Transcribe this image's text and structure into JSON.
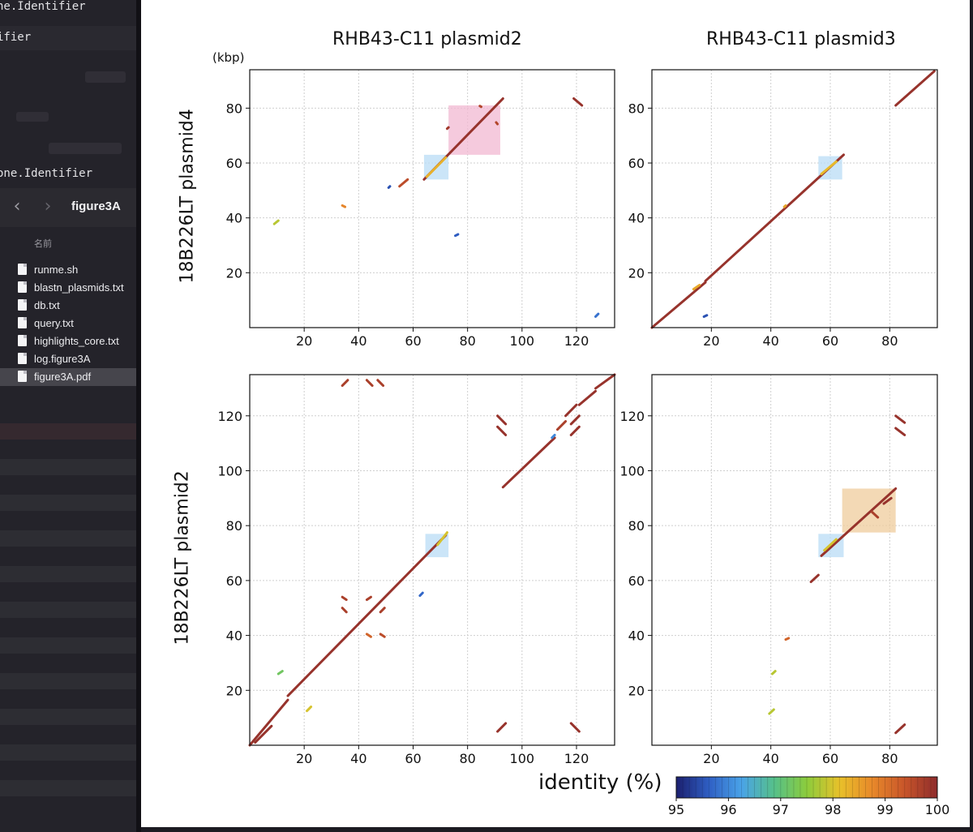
{
  "finder": {
    "code_lines": [
      "ne.Identifier",
      "ifier",
      "one.Identifier"
    ],
    "folder_title": "figure3A",
    "column_header": "名前",
    "back_glyph": "‹",
    "forward_glyph": "›",
    "files": [
      {
        "name": "runme.sh",
        "icon": "document-icon",
        "selected": false
      },
      {
        "name": "blastn_plasmids.txt",
        "icon": "document-icon",
        "selected": false
      },
      {
        "name": "db.txt",
        "icon": "document-icon",
        "selected": false
      },
      {
        "name": "query.txt",
        "icon": "document-icon",
        "selected": false
      },
      {
        "name": "highlights_core.txt",
        "icon": "document-icon",
        "selected": false
      },
      {
        "name": "log.figure3A",
        "icon": "document-icon",
        "selected": false
      },
      {
        "name": "figure3A.pdf",
        "icon": "pdf-document-icon",
        "selected": true
      }
    ]
  },
  "figure": {
    "column_titles": [
      "RHB43-C11 plasmid2",
      "RHB43-C11 plasmid3"
    ],
    "row_titles": [
      "18B226LT plasmid4",
      "18B226LT plasmid2"
    ],
    "unit_label": "(kbp)",
    "colorbar": {
      "title": "identity (%)",
      "ticks": [
        "95",
        "96",
        "97",
        "98",
        "99",
        "100"
      ],
      "range": [
        95,
        100
      ],
      "colors": [
        "#1b1f6e",
        "#2f5fc4",
        "#4aa3e8",
        "#56c08a",
        "#8ccc3c",
        "#e8c12a",
        "#e8892a",
        "#c8552a",
        "#8e2c2c"
      ]
    },
    "colors": {
      "highlight_pink": "#f2b8d2",
      "highlight_blue": "#b9dcf6",
      "highlight_tan": "#efcc9c"
    }
  },
  "chart_data": [
    {
      "type": "scatter",
      "title": "RHB43-C11 plasmid2 vs 18B226LT plasmid4",
      "xlabel": "RHB43-C11 plasmid2",
      "ylabel": "18B226LT plasmid4",
      "xlim": [
        0,
        134
      ],
      "ylim": [
        0,
        94
      ],
      "xticks": [
        20,
        40,
        60,
        80,
        100,
        120
      ],
      "yticks": [
        20,
        40,
        60,
        80
      ],
      "grid": true,
      "highlights": [
        {
          "x": [
            73,
            92
          ],
          "y": [
            63,
            81
          ],
          "color": "#f2b8d2"
        },
        {
          "x": [
            64,
            73
          ],
          "y": [
            54,
            63
          ],
          "color": "#b9dcf6"
        }
      ],
      "segments": [
        {
          "x": [
            64,
            93
          ],
          "y": [
            54,
            83.5
          ],
          "identity": 99.9
        },
        {
          "x": [
            65,
            72
          ],
          "y": [
            55,
            62
          ],
          "identity": 98.3
        },
        {
          "x": [
            72.5,
            73
          ],
          "y": [
            72.5,
            73
          ],
          "identity": 99.8
        },
        {
          "x": [
            84.5,
            85
          ],
          "y": [
            80.8,
            80.5
          ],
          "identity": 99.6
        },
        {
          "x": [
            90.5,
            91
          ],
          "y": [
            74.8,
            74.2
          ],
          "identity": 99.6
        },
        {
          "x": [
            119,
            122
          ],
          "y": [
            83.5,
            81
          ],
          "identity": 99.9
        },
        {
          "x": [
            55,
            58
          ],
          "y": [
            51.5,
            54
          ],
          "identity": 99.5
        },
        {
          "x": [
            51,
            51.5
          ],
          "y": [
            51,
            51.5
          ],
          "identity": 95.5
        },
        {
          "x": [
            34,
            35
          ],
          "y": [
            44.5,
            44
          ],
          "identity": 98.8
        },
        {
          "x": [
            9,
            10.5
          ],
          "y": [
            37.8,
            39
          ],
          "identity": 97.8
        },
        {
          "x": [
            75.5,
            76.5
          ],
          "y": [
            33.5,
            34
          ],
          "identity": 95.6
        },
        {
          "x": [
            127,
            128
          ],
          "y": [
            4,
            5
          ],
          "identity": 95.8
        }
      ]
    },
    {
      "type": "scatter",
      "title": "RHB43-C11 plasmid3 vs 18B226LT plasmid4",
      "xlabel": "RHB43-C11 plasmid3",
      "ylabel": "18B226LT plasmid4",
      "xlim": [
        0,
        96
      ],
      "ylim": [
        0,
        94
      ],
      "xticks": [
        20,
        40,
        60,
        80
      ],
      "yticks": [
        20,
        40,
        60,
        80
      ],
      "grid": true,
      "highlights": [
        {
          "x": [
            56,
            64
          ],
          "y": [
            54,
            62.5
          ],
          "color": "#b9dcf6"
        }
      ],
      "segments": [
        {
          "x": [
            0,
            18
          ],
          "y": [
            0,
            16.5
          ],
          "identity": 99.9
        },
        {
          "x": [
            18,
            64.5
          ],
          "y": [
            17,
            63
          ],
          "identity": 99.9
        },
        {
          "x": [
            14,
            16
          ],
          "y": [
            14,
            15.5
          ],
          "identity": 98.4
        },
        {
          "x": [
            57,
            62
          ],
          "y": [
            56,
            60.5
          ],
          "identity": 98.2
        },
        {
          "x": [
            44.5,
            45
          ],
          "y": [
            44,
            44.5
          ],
          "identity": 98.4
        },
        {
          "x": [
            82,
            95
          ],
          "y": [
            81,
            93.5
          ],
          "identity": 99.9
        },
        {
          "x": [
            17.5,
            18.5
          ],
          "y": [
            4,
            4.5
          ],
          "identity": 95.5
        }
      ]
    },
    {
      "type": "scatter",
      "title": "RHB43-C11 plasmid2 vs 18B226LT plasmid2",
      "xlabel": "RHB43-C11 plasmid2",
      "ylabel": "18B226LT plasmid2",
      "xlim": [
        0,
        134
      ],
      "ylim": [
        0,
        135
      ],
      "xticks": [
        20,
        40,
        60,
        80,
        100,
        120
      ],
      "yticks": [
        20,
        40,
        60,
        80,
        100,
        120
      ],
      "grid": true,
      "highlights": [
        {
          "x": [
            64.5,
            73
          ],
          "y": [
            68.5,
            77
          ],
          "color": "#b9dcf6"
        }
      ],
      "segments": [
        {
          "x": [
            0,
            14
          ],
          "y": [
            0,
            16.5
          ],
          "identity": 99.9
        },
        {
          "x": [
            14,
            72
          ],
          "y": [
            18,
            76.5
          ],
          "identity": 99.9
        },
        {
          "x": [
            69,
            72.5
          ],
          "y": [
            73,
            77.5
          ],
          "identity": 98.0
        },
        {
          "x": [
            93,
            112
          ],
          "y": [
            94,
            112
          ],
          "identity": 99.9
        },
        {
          "x": [
            111,
            112
          ],
          "y": [
            112,
            113
          ],
          "identity": 96.0
        },
        {
          "x": [
            113,
            116
          ],
          "y": [
            115,
            118
          ],
          "identity": 99.7
        },
        {
          "x": [
            116,
            120
          ],
          "y": [
            120,
            124
          ],
          "identity": 99.9
        },
        {
          "x": [
            121,
            127
          ],
          "y": [
            124,
            129
          ],
          "identity": 99.9
        },
        {
          "x": [
            127,
            134
          ],
          "y": [
            130,
            135
          ],
          "identity": 99.9
        },
        {
          "x": [
            91,
            94
          ],
          "y": [
            120,
            117
          ],
          "identity": 99.9
        },
        {
          "x": [
            91,
            94
          ],
          "y": [
            116,
            113
          ],
          "identity": 99.9
        },
        {
          "x": [
            118,
            121
          ],
          "y": [
            117,
            120
          ],
          "identity": 99.9
        },
        {
          "x": [
            118,
            121
          ],
          "y": [
            113,
            116
          ],
          "identity": 99.9
        },
        {
          "x": [
            91,
            94
          ],
          "y": [
            5,
            8
          ],
          "identity": 99.9
        },
        {
          "x": [
            118,
            121
          ],
          "y": [
            8,
            5
          ],
          "identity": 99.9
        },
        {
          "x": [
            34,
            36
          ],
          "y": [
            131,
            133
          ],
          "identity": 99.7
        },
        {
          "x": [
            43,
            45
          ],
          "y": [
            133,
            131
          ],
          "identity": 99.7
        },
        {
          "x": [
            47,
            49
          ],
          "y": [
            133,
            131
          ],
          "identity": 99.7
        },
        {
          "x": [
            34,
            35.5
          ],
          "y": [
            54,
            53
          ],
          "identity": 99.7
        },
        {
          "x": [
            34,
            35.5
          ],
          "y": [
            50,
            48.5
          ],
          "identity": 99.7
        },
        {
          "x": [
            43,
            44.5
          ],
          "y": [
            53,
            54
          ],
          "identity": 99.7
        },
        {
          "x": [
            48,
            49.5
          ],
          "y": [
            48.5,
            50
          ],
          "identity": 99.7
        },
        {
          "x": [
            43,
            44.5
          ],
          "y": [
            40.5,
            39.5
          ],
          "identity": 99.2
        },
        {
          "x": [
            48,
            49.5
          ],
          "y": [
            40.5,
            39.5
          ],
          "identity": 99.5
        },
        {
          "x": [
            62.5,
            63.5
          ],
          "y": [
            54.5,
            55.5
          ],
          "identity": 95.7
        },
        {
          "x": [
            10.5,
            12
          ],
          "y": [
            26,
            27
          ],
          "identity": 97.2
        },
        {
          "x": [
            21,
            22.5
          ],
          "y": [
            12.5,
            14
          ],
          "identity": 98.0
        },
        {
          "x": [
            2,
            8
          ],
          "y": [
            1,
            7
          ],
          "identity": 99.9
        }
      ]
    },
    {
      "type": "scatter",
      "title": "RHB43-C11 plasmid3 vs 18B226LT plasmid2",
      "xlabel": "RHB43-C11 plasmid3",
      "ylabel": "18B226LT plasmid2",
      "xlim": [
        0,
        96
      ],
      "ylim": [
        0,
        135
      ],
      "xticks": [
        20,
        40,
        60,
        80
      ],
      "yticks": [
        20,
        40,
        60,
        80,
        100,
        120
      ],
      "grid": true,
      "highlights": [
        {
          "x": [
            64,
            82
          ],
          "y": [
            77.5,
            93.5
          ],
          "color": "#efcc9c"
        },
        {
          "x": [
            56,
            64.5
          ],
          "y": [
            68.5,
            77
          ],
          "color": "#b9dcf6"
        }
      ],
      "segments": [
        {
          "x": [
            57,
            82
          ],
          "y": [
            69,
            93.5
          ],
          "identity": 99.9
        },
        {
          "x": [
            58,
            62
          ],
          "y": [
            71,
            75
          ],
          "identity": 98.0
        },
        {
          "x": [
            74,
            76
          ],
          "y": [
            85,
            83
          ],
          "identity": 99.7
        },
        {
          "x": [
            78,
            80.5
          ],
          "y": [
            88,
            90
          ],
          "identity": 99.9
        },
        {
          "x": [
            53.5,
            56
          ],
          "y": [
            59.5,
            62
          ],
          "identity": 99.9
        },
        {
          "x": [
            45,
            46
          ],
          "y": [
            38.5,
            39
          ],
          "identity": 99.2
        },
        {
          "x": [
            40.5,
            41.5
          ],
          "y": [
            26,
            27
          ],
          "identity": 97.8
        },
        {
          "x": [
            39.5,
            41
          ],
          "y": [
            11.5,
            13
          ],
          "identity": 97.8
        },
        {
          "x": [
            82,
            85
          ],
          "y": [
            120,
            117.5
          ],
          "identity": 99.9
        },
        {
          "x": [
            82,
            85
          ],
          "y": [
            115.5,
            113
          ],
          "identity": 99.9
        },
        {
          "x": [
            82,
            85
          ],
          "y": [
            4.5,
            7.5
          ],
          "identity": 99.9
        }
      ]
    }
  ]
}
